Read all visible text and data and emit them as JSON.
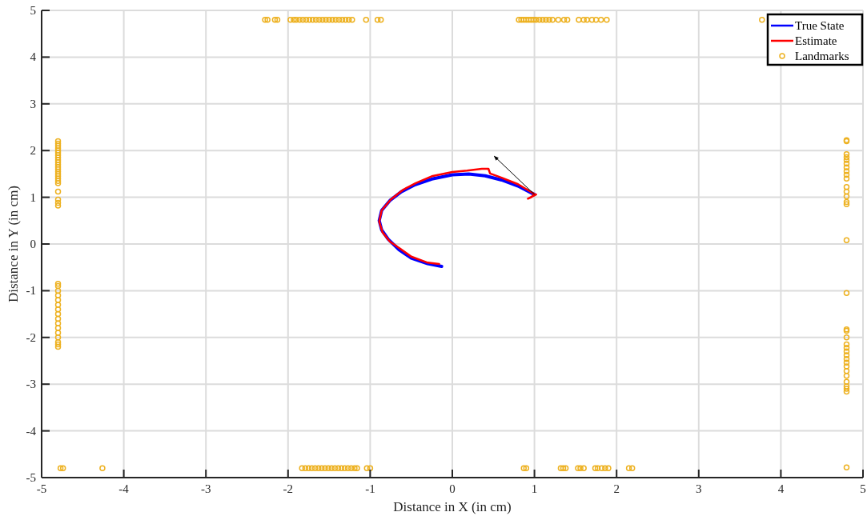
{
  "chart_data": {
    "type": "scatter",
    "xlabel": "Distance in X (in cm)",
    "ylabel": "Distance in Y (in cm)",
    "xlim": [
      -5,
      5
    ],
    "ylim": [
      -5,
      5
    ],
    "xticks": [
      -5,
      -4,
      -3,
      -2,
      -1,
      0,
      1,
      2,
      3,
      4,
      5
    ],
    "yticks": [
      -5,
      -4,
      -3,
      -2,
      -1,
      0,
      1,
      2,
      3,
      4,
      5
    ],
    "grid": true,
    "legend": "top right",
    "series": [
      {
        "name": "True State",
        "type": "line",
        "color": "#0000ff",
        "marker": "none",
        "x": [
          -0.13,
          -0.3,
          -0.5,
          -0.65,
          -0.78,
          -0.86,
          -0.89,
          -0.86,
          -0.76,
          -0.62,
          -0.45,
          -0.25,
          0,
          0.2,
          0.4,
          0.6,
          0.8,
          1.0
        ],
        "values": [
          -0.48,
          -0.42,
          -0.3,
          -0.12,
          0.1,
          0.3,
          0.5,
          0.72,
          0.93,
          1.12,
          1.27,
          1.39,
          1.48,
          1.5,
          1.46,
          1.37,
          1.24,
          1.06
        ]
      },
      {
        "name": "Estimate",
        "type": "line",
        "color": "#ff0000",
        "marker": "none",
        "x": [
          -0.16,
          -0.3,
          -0.5,
          -0.65,
          -0.76,
          -0.85,
          -0.89,
          -0.86,
          -0.75,
          -0.6,
          -0.45,
          -0.25,
          0,
          0.18,
          0.36,
          0.44,
          0.46,
          0.6,
          0.8,
          1.0,
          0.96,
          0.92,
          1.02
        ],
        "values": [
          -0.43,
          -0.4,
          -0.27,
          -0.08,
          0.05,
          0.25,
          0.48,
          0.72,
          0.95,
          1.16,
          1.3,
          1.45,
          1.54,
          1.57,
          1.61,
          1.61,
          1.51,
          1.42,
          1.28,
          1.07,
          1.0,
          0.97,
          1.06
        ]
      },
      {
        "name": "Landmarks",
        "type": "scatter",
        "color": "#edb120",
        "marker": "circle",
        "x": [
          -2.28,
          -2.25,
          -2.16,
          -2.13,
          -1.97,
          -1.93,
          -1.9,
          -1.86,
          -1.82,
          -1.78,
          -1.74,
          -1.7,
          -1.66,
          -1.62,
          -1.58,
          -1.54,
          -1.5,
          -1.46,
          -1.42,
          -1.38,
          -1.34,
          -1.3,
          -1.26,
          -1.22,
          -1.05,
          -0.91,
          -0.87,
          0.81,
          0.84,
          0.87,
          0.9,
          0.93,
          0.96,
          0.99,
          1.02,
          1.06,
          1.1,
          1.14,
          1.18,
          1.22,
          1.29,
          1.36,
          1.4,
          1.54,
          1.6,
          1.64,
          1.7,
          1.75,
          1.81,
          1.88,
          3.77,
          -4.77,
          -4.74,
          -4.26,
          -1.83,
          -1.79,
          -1.75,
          -1.71,
          -1.67,
          -1.63,
          -1.59,
          -1.55,
          -1.51,
          -1.47,
          -1.43,
          -1.39,
          -1.35,
          -1.31,
          -1.27,
          -1.23,
          -1.19,
          -1.16,
          -1.04,
          -1.0,
          0.87,
          0.9,
          1.32,
          1.35,
          1.38,
          1.53,
          1.56,
          1.6,
          1.74,
          1.77,
          1.82,
          1.86,
          1.9,
          2.15,
          2.19,
          -4.8,
          -4.8,
          -4.8,
          -4.8,
          -4.8,
          -4.8,
          -4.8,
          -4.8,
          -4.8,
          -4.8,
          -4.8,
          -4.8,
          -4.8,
          -4.8,
          -4.8,
          -4.8,
          -4.8,
          -4.8,
          -4.8,
          -4.8,
          -4.8,
          -4.8,
          -4.8,
          -4.8,
          -4.8,
          -4.8,
          -4.8,
          -4.8,
          -4.8,
          -4.8,
          -4.8,
          -4.8,
          -4.8,
          -4.8,
          -4.8,
          -4.8,
          -4.8,
          -4.8,
          -4.8,
          4.8,
          4.8,
          4.8,
          4.8,
          4.8,
          4.8,
          4.8,
          4.8,
          4.8,
          4.8,
          4.8,
          4.8,
          4.8,
          4.8,
          4.8,
          4.8,
          4.8,
          4.8,
          4.8,
          4.8,
          4.8,
          4.8,
          4.8,
          4.8,
          4.8,
          4.8,
          4.8,
          4.8,
          4.8,
          4.8,
          4.8,
          4.8,
          4.8,
          4.8
        ],
        "values": [
          4.8,
          4.8,
          4.8,
          4.8,
          4.8,
          4.8,
          4.8,
          4.8,
          4.8,
          4.8,
          4.8,
          4.8,
          4.8,
          4.8,
          4.8,
          4.8,
          4.8,
          4.8,
          4.8,
          4.8,
          4.8,
          4.8,
          4.8,
          4.8,
          4.8,
          4.8,
          4.8,
          4.8,
          4.8,
          4.8,
          4.8,
          4.8,
          4.8,
          4.8,
          4.8,
          4.8,
          4.8,
          4.8,
          4.8,
          4.8,
          4.8,
          4.8,
          4.8,
          4.8,
          4.8,
          4.8,
          4.8,
          4.8,
          4.8,
          4.8,
          4.8,
          -4.8,
          -4.8,
          -4.8,
          -4.8,
          -4.8,
          -4.8,
          -4.8,
          -4.8,
          -4.8,
          -4.8,
          -4.8,
          -4.8,
          -4.8,
          -4.8,
          -4.8,
          -4.8,
          -4.8,
          -4.8,
          -4.8,
          -4.8,
          -4.8,
          -4.8,
          -4.8,
          -4.8,
          -4.8,
          -4.8,
          -4.8,
          -4.8,
          -4.8,
          -4.8,
          -4.8,
          -4.8,
          -4.8,
          -4.8,
          -4.8,
          -4.8,
          -4.8,
          -4.8,
          2.2,
          2.15,
          2.1,
          2.05,
          2.0,
          1.95,
          1.9,
          1.85,
          1.8,
          1.75,
          1.7,
          1.65,
          1.6,
          1.55,
          1.5,
          1.45,
          1.4,
          1.35,
          1.3,
          1.12,
          0.95,
          0.88,
          0.82,
          -0.85,
          -0.9,
          -1.0,
          -1.1,
          -1.2,
          -1.3,
          -1.4,
          -1.5,
          -1.6,
          -1.7,
          -1.8,
          -1.9,
          -2.0,
          -2.1,
          -2.15,
          -2.2,
          2.22,
          2.2,
          1.92,
          1.86,
          1.8,
          1.72,
          1.64,
          1.56,
          1.48,
          1.4,
          1.22,
          1.12,
          1.02,
          0.9,
          0.85,
          0.08,
          -1.05,
          -1.83,
          -1.86,
          -2.0,
          -2.15,
          -2.22,
          -2.3,
          -2.38,
          -2.46,
          -2.54,
          -2.62,
          -2.72,
          -2.82,
          -2.95,
          -3.05,
          -3.1,
          -3.16,
          -4.78
        ]
      }
    ]
  }
}
